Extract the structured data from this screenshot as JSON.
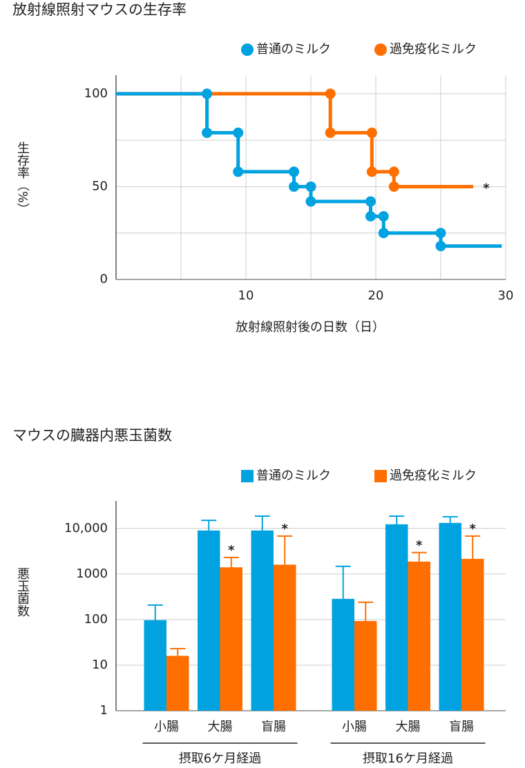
{
  "chart_data": [
    {
      "type": "line",
      "title": "放射線照射マウスの生存率",
      "y_label": "生存率（%）",
      "x_label": "放射線照射後の日数（日）",
      "xlim": [
        0,
        30
      ],
      "xticks": [
        10,
        20,
        30
      ],
      "xminor": [
        5,
        15,
        25
      ],
      "ylim": [
        0,
        110
      ],
      "yticks": [
        0,
        50,
        100
      ],
      "yminor": [
        25,
        75
      ],
      "grid": true,
      "series": [
        {
          "name": "過免疫化ミルク",
          "color": "#ff6f00",
          "x": [
            0,
            16.5,
            16.5,
            19.7,
            19.7,
            21.4,
            21.4,
            27.5
          ],
          "values": [
            100,
            100,
            79,
            79,
            58,
            58,
            50,
            50
          ]
        },
        {
          "name": "普通のミルク",
          "color": "#00a2e0",
          "x": [
            0,
            7,
            7,
            9.4,
            9.4,
            13.7,
            13.7,
            15,
            15,
            19.6,
            19.6,
            20.6,
            20.6,
            25,
            25,
            29.7
          ],
          "values": [
            100,
            100,
            79,
            79,
            58,
            58,
            50,
            50,
            42,
            42,
            34,
            34,
            25,
            25,
            18,
            18
          ]
        }
      ],
      "annotations": [
        {
          "text": "*",
          "x": 28.5,
          "y": 50
        }
      ]
    },
    {
      "type": "bar",
      "title": "マウスの臓器内悪玉菌数",
      "y_label": "悪玉菌数",
      "log_scale": true,
      "ylim": [
        1,
        40000
      ],
      "yticks": [
        1,
        10,
        100,
        1000,
        {
          "value": 10000,
          "label": "10,000"
        }
      ],
      "grid": true,
      "categories": [
        "小腸",
        "大腸",
        "盲腸",
        "小腸",
        "大腸",
        "盲腸"
      ],
      "groups": [
        "摂取6ケ月経過",
        "摂取16ケ月経過"
      ],
      "series": [
        {
          "name": "普通のミルク",
          "color": "#00a2e0",
          "values": [
            97,
            9000,
            9000,
            285,
            12300,
            13200
          ],
          "errors": [
            111,
            6000,
            9600,
            1185,
            6300,
            4800
          ]
        },
        {
          "name": "過免疫化ミルク",
          "color": "#ff6f00",
          "values": [
            16,
            1400,
            1600,
            93,
            1870,
            2150
          ],
          "errors": [
            7,
            900,
            5200,
            147,
            1080,
            4650
          ]
        }
      ],
      "annotations": [
        {
          "text": "*",
          "series": 1,
          "category": 1
        },
        {
          "text": "*",
          "series": 1,
          "category": 2
        },
        {
          "text": "*",
          "series": 1,
          "category": 4
        },
        {
          "text": "*",
          "series": 1,
          "category": 5
        }
      ]
    }
  ]
}
